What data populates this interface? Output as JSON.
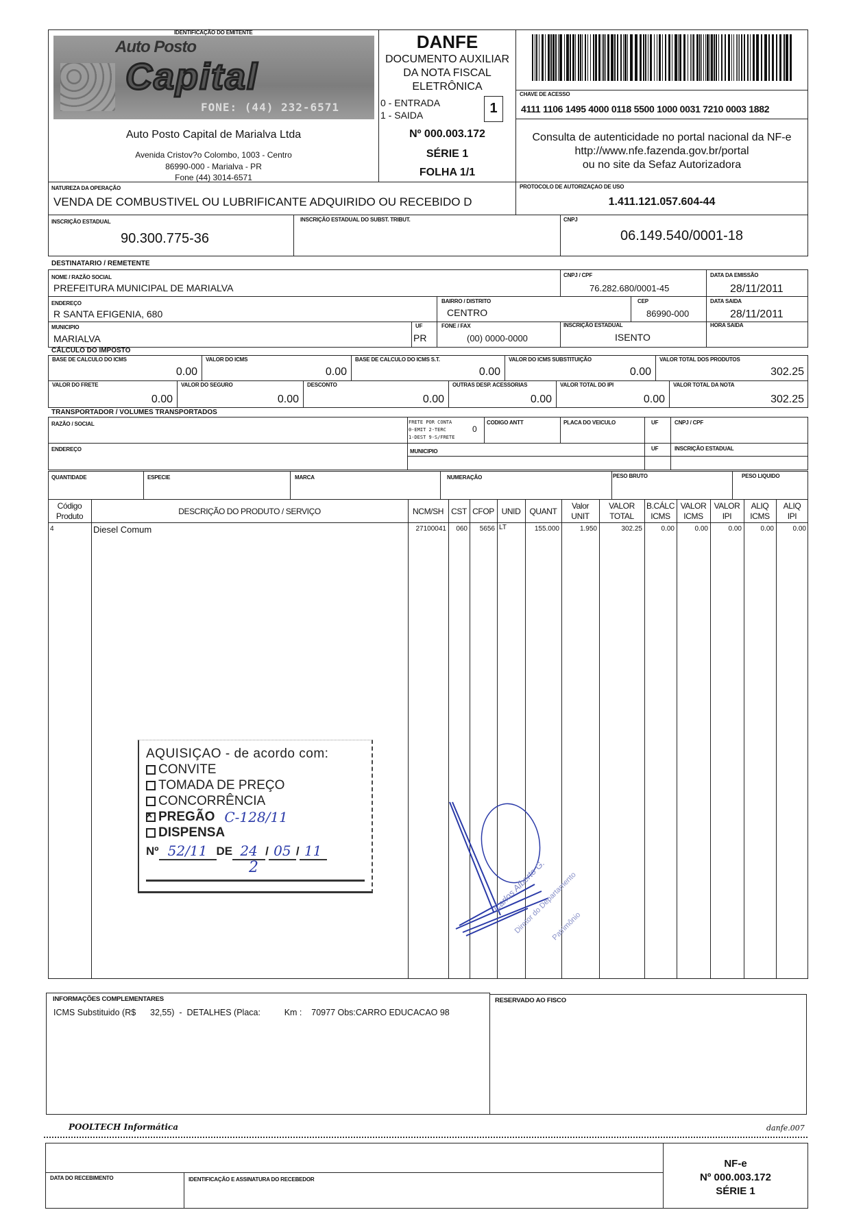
{
  "emitente": {
    "section_label": "IDENTIFICAÇÃO DO EMITENTE",
    "logo_text_1": "Auto Posto",
    "logo_text_2": "Capital",
    "logo_phone": "FONE: (44) 232-6571",
    "name": "Auto Posto Capital de Marialva Ltda",
    "address": "Avenida Cristov?o Colombo, 1003 - Centro",
    "city": "86990-000 - Marialva - PR",
    "phone": "Fone (44) 3014-6571"
  },
  "danfe": {
    "title": "DANFE",
    "subtitle_1": "DOCUMENTO AUXILIAR",
    "subtitle_2": "DA NOTA FISCAL",
    "subtitle_3": "ELETRÔNICA",
    "entrada": "0 - ENTRADA",
    "saida": "1 - SAIDA",
    "tipo": "1",
    "numero": "Nº 000.003.172",
    "serie": "SÉRIE 1",
    "folha": "FOLHA 1/1"
  },
  "chave": {
    "label": "CHAVE DE ACESSO",
    "value": "4111 1106 1495 4000 0118 5500 1000 0031 7210 0003 1882"
  },
  "consulta": {
    "line1": "Consulta de autenticidade no portal nacional da NF-e",
    "line2": "http://www.nfe.fazenda.gov.br/portal",
    "line3": "ou no site da Sefaz Autorizadora"
  },
  "natureza": {
    "label": "NATUREZA DA OPERAÇÃO",
    "value": "VENDA DE COMBUSTIVEL OU LUBRIFICANTE ADQUIRIDO OU RECEBIDO D"
  },
  "protocolo": {
    "label": "PROTOCOLO DE AUTORIZAÇAO DE USO",
    "value": "1.411.121.057.604-44"
  },
  "inscricao": {
    "label": "INSCRIÇÃO ESTADUAL",
    "value": "90.300.775-36",
    "st_label": "INSCRIÇÃO ESTADUAL DO SUBST. TRIBUT.",
    "cnpj_label": "CNPJ",
    "cnpj": "06.149.540/0001-18"
  },
  "destinatario": {
    "section": "DESTINATARIO / REMETENTE",
    "nome_label": "NOME / RAZÃO SOCIAL",
    "nome": "PREFEITURA MUNICIPAL DE MARIALVA",
    "cnpj_label": "CNPJ / CPF",
    "cnpj": "76.282.680/0001-45",
    "emissao_label": "DATA DA EMISSÃO",
    "emissao": "28/11/2011",
    "endereco_label": "ENDEREÇO",
    "endereco": "R SANTA EFIGENIA, 680",
    "bairro_label": "BAIRRO / DISTRITO",
    "bairro": "CENTRO",
    "cep_label": "CEP",
    "cep": "86990-000",
    "saida_label": "DATA SAIDA",
    "saida": "28/11/2011",
    "municipio_label": "MUNICIPIO",
    "municipio": "MARIALVA",
    "uf_label": "UF",
    "uf": "PR",
    "fone_label": "FONE / FAX",
    "fone": "(00) 0000-0000",
    "ie_label": "INSCRIÇÃO ESTADUAL",
    "ie": "ISENTO",
    "hora_label": "HORA SAIDA"
  },
  "imposto": {
    "section": "CÁLCULO DO IMPOSTO",
    "row1": [
      {
        "label": "BASE DE CALCULO DO ICMS",
        "value": "0.00"
      },
      {
        "label": "VALOR DO ICMS",
        "value": "0.00"
      },
      {
        "label": "BASE DE CALCULO DO ICMS S.T.",
        "value": "0.00"
      },
      {
        "label": "VALOR DO ICMS SUBSTITUIÇÃO",
        "value": "0.00"
      },
      {
        "label": "VALOR TOTAL DOS PRODUTOS",
        "value": "302.25"
      }
    ],
    "row2": [
      {
        "label": "VALOR DO FRETE",
        "value": "0.00"
      },
      {
        "label": "VALOR DO SEGURO",
        "value": "0.00"
      },
      {
        "label": "DESCONTO",
        "value": "0.00"
      },
      {
        "label": "OUTRAS DESP. ACESSORIAS",
        "value": "0.00"
      },
      {
        "label": "VALOR TOTAL DO IPI",
        "value": "0.00"
      },
      {
        "label": "VALOR TOTAL DA NOTA",
        "value": "302.25"
      }
    ]
  },
  "transportador": {
    "section": "TRANSPORTADOR / VOLUMES TRANSPORTADOS",
    "razao_label": "RAZÃO / SOCIAL",
    "frete_l1": "FRETE POR CONTA",
    "frete_l2": "0-EMIT 2-TERC",
    "frete_l3": "1-DEST 9-S/FRETE",
    "frete_value": "0",
    "antt_label": "CODIGO ANTT",
    "placa_label": "PLACA DO VEICULO",
    "uf_label": "UF",
    "cnpj_label": "CNPJ / CPF",
    "endereco_label": "ENDEREÇO",
    "municipio_label": "MUNICIPIO",
    "uf2_label": "UF",
    "ie_label": "INSCRIÇÃO ESTADUAL",
    "quantidade_label": "QUANTIDADE",
    "especie_label": "ESPECIE",
    "marca_label": "MARCA",
    "numeracao_label": "NUMERAÇÃO",
    "peso_bruto_label": "PESO BRUTO",
    "peso_liquido_label": "PESO LIQUIDO"
  },
  "produtos": {
    "headers": [
      "Código\nProduto",
      "DESCRIÇÃO DO PRODUTO / SERVIÇO",
      "NCM/SH",
      "CST",
      "CFOP",
      "UNID",
      "QUANT",
      "Valor\nUNIT",
      "VALOR\nTOTAL",
      "B.CÁLC\nICMS",
      "VALOR\nICMS",
      "VALOR\nIPI",
      "ALIQ\nICMS",
      "ALIQ\nIPI"
    ],
    "rows": [
      [
        "4",
        "Diesel Comum",
        "27100041",
        "060",
        "5656",
        "LT",
        "155.000",
        "1.950",
        "302.25",
        "0.00",
        "0.00",
        "0.00",
        "0.00",
        "0.00"
      ]
    ]
  },
  "carimbo": {
    "title": "AQUISIÇAO - de acordo com:",
    "options": [
      {
        "label": "CONVITE",
        "checked": false
      },
      {
        "label": "TOMADA DE PREÇO",
        "checked": false
      },
      {
        "label": "CONCORRÊNCIA",
        "checked": false
      },
      {
        "label": "PREGÃO",
        "checked": true
      },
      {
        "label": "DISPENSA",
        "checked": false
      }
    ],
    "pregao_hand": "C-128/11",
    "numero_prefix": "Nº",
    "numero": "52/11",
    "de": "DE",
    "dia": "24",
    "mes": "05",
    "ano": "11",
    "mark": "2"
  },
  "assinatura": {
    "line1": "Carlos Alberto G.",
    "line2": "Diretor do Departamento",
    "line3": "Patrimônio"
  },
  "info": {
    "label": "INFORMAÇÕES COMPLEMENTARES",
    "text": "ICMS Substituido (R$      32,55)  -  DETALHES (Placa:          Km :    70977 Obs:CARRO EDUCACAO 98",
    "fisco_label": "RESERVADO AO FISCO"
  },
  "footer": {
    "software": "POOLTECH Informática",
    "form": "danfe.007"
  },
  "canhoto": {
    "data_label": "DATA DO RECEBIMENTO",
    "assinatura_label": "IDENTIFICAÇÃO E ASSINATURA DO RECEBEDOR",
    "nfe": "NF-e",
    "numero": "Nº 000.003.172",
    "serie": "SÉRIE 1"
  },
  "colors": {
    "ink": "#111111",
    "stamp_ink": "#2a3aa8"
  }
}
